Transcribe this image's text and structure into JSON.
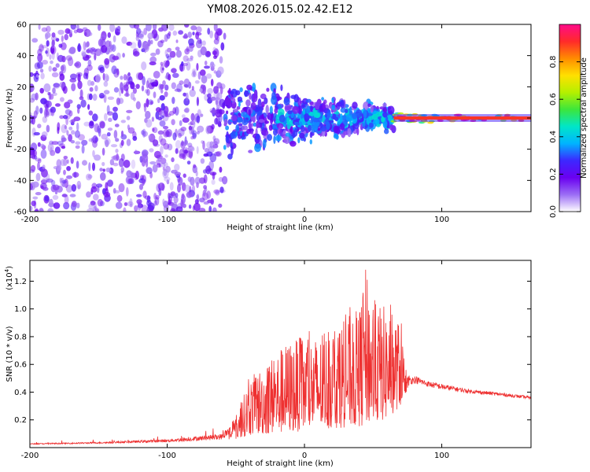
{
  "title": "YM08.2026.015.02.42.E12",
  "colors": {
    "snr_line": "#ee3030",
    "colorbar": [
      "#ffffff",
      "#9b6df5",
      "#6a00f0",
      "#3c28ff",
      "#00b4ff",
      "#00e6c8",
      "#3ce63c",
      "#b4f000",
      "#ffe000",
      "#ff8c00",
      "#ff2a2a",
      "#ff0b8a"
    ]
  },
  "chart_data": [
    {
      "type": "heatmap",
      "name": "spectrogram",
      "title": "YM08.2026.015.02.42.E12",
      "xlabel": "Height of straight line (km)",
      "ylabel": "Frequency (Hz)",
      "xlim": [
        -200,
        165
      ],
      "ylim": [
        -60,
        60
      ],
      "xticks": [
        -200,
        -100,
        0,
        100
      ],
      "xtick_labels": [
        "-200",
        "-100",
        "0",
        "100"
      ],
      "yticks": [
        -60,
        -40,
        -20,
        0,
        20,
        40,
        60
      ],
      "ytick_labels": [
        "-60",
        "-40",
        "-20",
        "0",
        "20",
        "40",
        "60"
      ],
      "colorbar": {
        "label": "Normalized spectral amplitude",
        "range": [
          0,
          1
        ],
        "ticks": [
          0,
          0.2,
          0.4,
          0.6,
          0.8
        ],
        "tick_labels": [
          "0.0",
          "0.2",
          "0.4",
          "0.6",
          "0.8"
        ]
      },
      "bands": [
        {
          "x_range": [
            -200,
            -58
          ],
          "half_width_hz": 60,
          "mean_amplitude": 0.15
        },
        {
          "x_range": [
            -58,
            65
          ],
          "half_width_hz": 20,
          "mean_amplitude": 0.22
        },
        {
          "x_range": [
            65,
            95
          ],
          "half_width_hz": 3,
          "mean_amplitude": 0.75
        },
        {
          "x_range": [
            95,
            165
          ],
          "half_width_hz": 2,
          "mean_amplitude": 0.85
        }
      ]
    },
    {
      "type": "line",
      "name": "snr",
      "xlabel": "Height of straight line (km)",
      "ylabel": "SNR (10 * v/v)",
      "y_multiplier": "(x10",
      "y_multiplier_exp": "4",
      "y_multiplier_close": ")",
      "xlim": [
        -200,
        165
      ],
      "ylim": [
        0,
        1.35
      ],
      "xticks": [
        -200,
        -100,
        0,
        100
      ],
      "xtick_labels": [
        "-200",
        "-100",
        "0",
        "100"
      ],
      "yticks": [
        0.2,
        0.4,
        0.6,
        0.8,
        1.0,
        1.2
      ],
      "ytick_labels": [
        "0.2",
        "0.4",
        "0.6",
        "0.8",
        "1.0",
        "1.2"
      ],
      "series": [
        {
          "name": "SNR",
          "envelope_x": [
            -200,
            -150,
            -100,
            -80,
            -60,
            -50,
            -40,
            -30,
            -20,
            -10,
            0,
            10,
            20,
            30,
            40,
            45,
            50,
            60,
            70,
            75,
            80,
            90,
            100,
            120,
            140,
            165
          ],
          "envelope_y": [
            0.03,
            0.04,
            0.06,
            0.08,
            0.1,
            0.22,
            0.5,
            0.6,
            0.7,
            0.78,
            0.8,
            0.8,
            0.85,
            0.95,
            1.0,
            1.32,
            1.05,
            1.02,
            0.9,
            0.5,
            0.52,
            0.48,
            0.46,
            0.42,
            0.4,
            0.37
          ],
          "floor_x": [
            -200,
            -100,
            -60,
            -50,
            -40,
            -20,
            0,
            20,
            40,
            60,
            70,
            75,
            80,
            100,
            165
          ],
          "floor_y": [
            0.02,
            0.03,
            0.04,
            0.06,
            0.09,
            0.1,
            0.12,
            0.14,
            0.15,
            0.2,
            0.3,
            0.42,
            0.44,
            0.4,
            0.34
          ]
        }
      ]
    }
  ]
}
